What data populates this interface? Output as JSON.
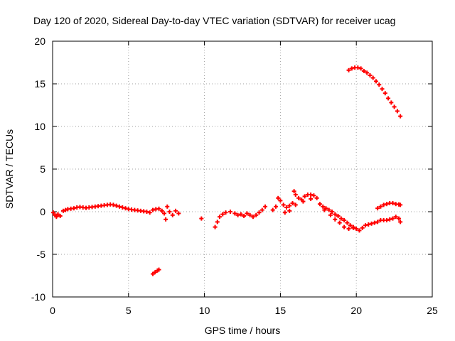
{
  "chart_data": {
    "type": "scatter",
    "title": "Day 120 of 2020, Sidereal Day-to-day VTEC variation (SDTVAR) for receiver ucag",
    "xlabel": "GPS time / hours",
    "ylabel": "SDTVAR / TECUs",
    "xlim": [
      0,
      25
    ],
    "ylim": [
      -10,
      20
    ],
    "grid": true,
    "x_ticks": [
      "0",
      "5",
      "10",
      "15",
      "20",
      "25"
    ],
    "y_ticks": [
      "-10",
      "-5",
      "0",
      "5",
      "10",
      "15",
      "20"
    ],
    "marker": "+",
    "color": "#ff0000",
    "series": [
      {
        "name": "SDTVAR",
        "points": [
          [
            0.05,
            -0.1
          ],
          [
            0.15,
            -0.4
          ],
          [
            0.25,
            -0.6
          ],
          [
            0.35,
            -0.3
          ],
          [
            0.5,
            -0.5
          ],
          [
            0.7,
            0.1
          ],
          [
            0.85,
            0.2
          ],
          [
            1.0,
            0.3
          ],
          [
            1.2,
            0.35
          ],
          [
            1.4,
            0.4
          ],
          [
            1.6,
            0.5
          ],
          [
            1.8,
            0.55
          ],
          [
            2.0,
            0.5
          ],
          [
            2.2,
            0.45
          ],
          [
            2.4,
            0.5
          ],
          [
            2.6,
            0.55
          ],
          [
            2.8,
            0.6
          ],
          [
            3.0,
            0.65
          ],
          [
            3.2,
            0.7
          ],
          [
            3.4,
            0.75
          ],
          [
            3.6,
            0.8
          ],
          [
            3.8,
            0.85
          ],
          [
            4.0,
            0.8
          ],
          [
            4.2,
            0.7
          ],
          [
            4.4,
            0.6
          ],
          [
            4.6,
            0.5
          ],
          [
            4.8,
            0.4
          ],
          [
            5.0,
            0.3
          ],
          [
            5.2,
            0.25
          ],
          [
            5.4,
            0.2
          ],
          [
            5.6,
            0.15
          ],
          [
            5.8,
            0.1
          ],
          [
            6.0,
            0.05
          ],
          [
            6.2,
            0.0
          ],
          [
            6.4,
            -0.1
          ],
          [
            6.6,
            0.2
          ],
          [
            6.8,
            0.3
          ],
          [
            7.0,
            0.35
          ],
          [
            7.2,
            0.1
          ],
          [
            7.35,
            -0.2
          ],
          [
            7.45,
            -0.9
          ],
          [
            7.55,
            0.6
          ],
          [
            7.7,
            0.0
          ],
          [
            7.9,
            -0.4
          ],
          [
            8.1,
            0.1
          ],
          [
            8.3,
            -0.2
          ],
          [
            6.6,
            -7.3
          ],
          [
            6.75,
            -7.1
          ],
          [
            6.9,
            -6.9
          ],
          [
            7.0,
            -6.8
          ],
          [
            9.8,
            -0.8
          ],
          [
            10.7,
            -1.8
          ],
          [
            10.85,
            -1.2
          ],
          [
            11.0,
            -0.6
          ],
          [
            11.2,
            -0.3
          ],
          [
            11.4,
            -0.1
          ],
          [
            11.7,
            0.0
          ],
          [
            12.0,
            -0.2
          ],
          [
            12.2,
            -0.4
          ],
          [
            12.4,
            -0.3
          ],
          [
            12.6,
            -0.5
          ],
          [
            12.8,
            -0.2
          ],
          [
            13.0,
            -0.4
          ],
          [
            13.2,
            -0.6
          ],
          [
            13.4,
            -0.4
          ],
          [
            13.6,
            -0.1
          ],
          [
            13.8,
            0.2
          ],
          [
            14.0,
            0.6
          ],
          [
            14.5,
            0.2
          ],
          [
            14.7,
            0.6
          ],
          [
            14.85,
            1.6
          ],
          [
            15.0,
            1.3
          ],
          [
            15.2,
            0.8
          ],
          [
            15.4,
            0.5
          ],
          [
            15.6,
            0.7
          ],
          [
            15.8,
            1.0
          ],
          [
            15.9,
            2.4
          ],
          [
            16.0,
            2.0
          ],
          [
            16.2,
            1.6
          ],
          [
            16.4,
            1.4
          ],
          [
            16.6,
            1.8
          ],
          [
            16.8,
            2.0
          ],
          [
            17.0,
            2.0
          ],
          [
            17.2,
            1.9
          ],
          [
            17.4,
            1.6
          ],
          [
            15.3,
            -0.1
          ],
          [
            15.6,
            0.1
          ],
          [
            16.0,
            0.8
          ],
          [
            16.5,
            1.2
          ],
          [
            17.0,
            1.5
          ],
          [
            17.6,
            0.9
          ],
          [
            17.8,
            0.6
          ],
          [
            18.0,
            0.4
          ],
          [
            18.2,
            0.2
          ],
          [
            18.4,
            0.0
          ],
          [
            18.6,
            -0.3
          ],
          [
            18.8,
            -0.5
          ],
          [
            19.0,
            -0.8
          ],
          [
            19.2,
            -1.0
          ],
          [
            19.4,
            -1.3
          ],
          [
            19.6,
            -1.6
          ],
          [
            19.8,
            -1.8
          ],
          [
            20.0,
            -2.0
          ],
          [
            20.2,
            -2.2
          ],
          [
            20.4,
            -1.9
          ],
          [
            20.6,
            -1.6
          ],
          [
            20.8,
            -1.5
          ],
          [
            21.0,
            -1.4
          ],
          [
            21.2,
            -1.3
          ],
          [
            21.4,
            -1.2
          ],
          [
            21.6,
            -1.0
          ],
          [
            21.8,
            -1.0
          ],
          [
            22.0,
            -1.0
          ],
          [
            22.2,
            -0.9
          ],
          [
            22.4,
            -0.8
          ],
          [
            22.6,
            -0.6
          ],
          [
            22.8,
            -0.8
          ],
          [
            22.9,
            -1.2
          ],
          [
            17.9,
            0.2
          ],
          [
            18.3,
            -0.4
          ],
          [
            18.6,
            -0.9
          ],
          [
            18.9,
            -1.3
          ],
          [
            19.2,
            -1.8
          ],
          [
            19.5,
            -2.0
          ],
          [
            19.8,
            -1.9
          ],
          [
            21.4,
            0.4
          ],
          [
            21.6,
            0.6
          ],
          [
            21.8,
            0.8
          ],
          [
            22.0,
            0.9
          ],
          [
            22.2,
            1.0
          ],
          [
            22.4,
            1.0
          ],
          [
            22.6,
            0.9
          ],
          [
            22.8,
            0.85
          ],
          [
            22.9,
            0.8
          ],
          [
            19.5,
            16.6
          ],
          [
            19.7,
            16.8
          ],
          [
            19.9,
            16.9
          ],
          [
            20.1,
            16.9
          ],
          [
            20.3,
            16.8
          ],
          [
            20.5,
            16.5
          ],
          [
            20.7,
            16.3
          ],
          [
            20.9,
            16.0
          ],
          [
            21.1,
            15.7
          ],
          [
            21.3,
            15.3
          ],
          [
            21.5,
            14.9
          ],
          [
            21.7,
            14.4
          ],
          [
            21.9,
            13.9
          ],
          [
            22.1,
            13.3
          ],
          [
            22.3,
            12.8
          ],
          [
            22.5,
            12.3
          ],
          [
            22.7,
            11.8
          ],
          [
            22.9,
            11.2
          ]
        ]
      }
    ]
  }
}
